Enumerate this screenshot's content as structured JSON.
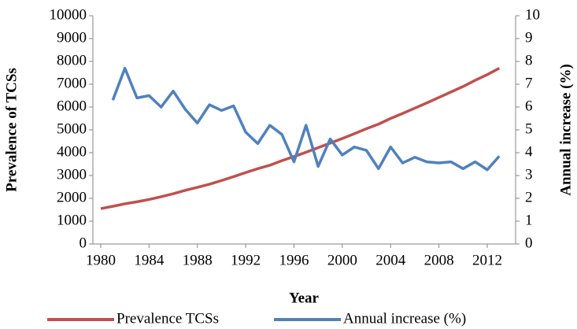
{
  "chart_data": {
    "type": "line",
    "x_label": "Year",
    "y_label": "Prevalence of TCSs",
    "y2_label": "Annual increase (%)",
    "x": [
      1980,
      1981,
      1982,
      1983,
      1984,
      1985,
      1986,
      1987,
      1988,
      1989,
      1990,
      1991,
      1992,
      1993,
      1994,
      1995,
      1996,
      1997,
      1998,
      1999,
      2000,
      2001,
      2002,
      2003,
      2004,
      2005,
      2006,
      2007,
      2008,
      2009,
      2010,
      2011,
      2012,
      2013
    ],
    "series": [
      {
        "name": "Prevalence TCSs",
        "color": "#c0504d",
        "values": [
          1550,
          1650,
          1760,
          1850,
          1950,
          2070,
          2200,
          2350,
          2480,
          2620,
          2780,
          2950,
          3130,
          3300,
          3450,
          3650,
          3830,
          4020,
          4220,
          4420,
          4620,
          4830,
          5050,
          5250,
          5500,
          5720,
          5950,
          6180,
          6420,
          6660,
          6900,
          7170,
          7420,
          7700
        ]
      },
      {
        "name": "Annual increase (%)",
        "color": "#4f81bd",
        "axis": "y2",
        "values": [
          null,
          6.3,
          7.7,
          6.4,
          6.5,
          6.0,
          6.7,
          5.9,
          5.3,
          6.1,
          5.85,
          6.05,
          4.9,
          4.4,
          5.2,
          4.8,
          3.6,
          5.2,
          3.4,
          4.6,
          3.9,
          4.25,
          4.1,
          3.3,
          4.25,
          3.55,
          3.8,
          3.6,
          3.55,
          3.6,
          3.3,
          3.6,
          3.25,
          3.85
        ]
      }
    ],
    "xlim": [
      1979.35,
      2014.35
    ],
    "xticks": [
      1980,
      1984,
      1988,
      1992,
      1996,
      2000,
      2004,
      2008,
      2012
    ],
    "ylim": [
      0,
      10000
    ],
    "yticks": [
      0,
      1000,
      2000,
      3000,
      4000,
      5000,
      6000,
      7000,
      8000,
      9000,
      10000
    ],
    "y2lim": [
      0,
      10
    ],
    "y2ticks": [
      0,
      1,
      2,
      3,
      4,
      5,
      6,
      7,
      8,
      9,
      10
    ],
    "legend": "bottom"
  }
}
